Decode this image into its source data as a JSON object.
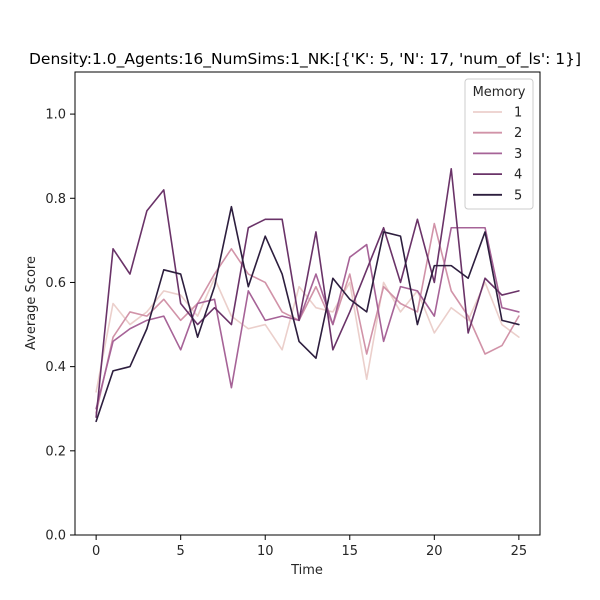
{
  "chart_data": {
    "type": "line",
    "title": "Density:1.0_Agents:16_NumSims:1_NK:[{'K': 5, 'N': 17, 'num_of_ls': 1}]",
    "xlabel": "Time",
    "ylabel": "Average Score",
    "xlim": [
      -1.25,
      26.25
    ],
    "ylim": [
      0.0,
      1.1
    ],
    "xticks": [
      0,
      5,
      10,
      15,
      20,
      25
    ],
    "yticks": [
      0.0,
      0.2,
      0.4,
      0.6,
      0.8,
      1.0
    ],
    "xtick_labels": [
      "0",
      "5",
      "10",
      "15",
      "20",
      "25"
    ],
    "ytick_labels": [
      "0.0",
      "0.2",
      "0.4",
      "0.6",
      "0.8",
      "1.0"
    ],
    "grid": false,
    "legend": {
      "title": "Memory",
      "placement": "top-right"
    },
    "x": [
      0,
      1,
      2,
      3,
      4,
      5,
      6,
      7,
      8,
      9,
      10,
      11,
      12,
      13,
      14,
      15,
      16,
      17,
      18,
      19,
      20,
      21,
      22,
      23,
      24,
      25
    ],
    "series": [
      {
        "name": "1",
        "color": "#ebcfcb",
        "values": [
          0.34,
          0.55,
          0.5,
          0.53,
          0.58,
          0.57,
          0.52,
          0.61,
          0.52,
          0.49,
          0.5,
          0.44,
          0.59,
          0.54,
          0.53,
          0.6,
          0.37,
          0.6,
          0.53,
          0.58,
          0.48,
          0.54,
          0.51,
          0.6,
          0.5,
          0.47
        ]
      },
      {
        "name": "2",
        "color": "#d193a8",
        "values": [
          0.29,
          0.47,
          0.53,
          0.52,
          0.56,
          0.51,
          0.55,
          0.62,
          0.68,
          0.62,
          0.6,
          0.53,
          0.51,
          0.59,
          0.5,
          0.62,
          0.43,
          0.59,
          0.55,
          0.53,
          0.74,
          0.58,
          0.52,
          0.43,
          0.45,
          0.52
        ]
      },
      {
        "name": "3",
        "color": "#a66397",
        "values": [
          0.3,
          0.46,
          0.49,
          0.51,
          0.52,
          0.44,
          0.55,
          0.56,
          0.35,
          0.58,
          0.51,
          0.52,
          0.51,
          0.62,
          0.5,
          0.66,
          0.69,
          0.46,
          0.59,
          0.58,
          0.52,
          0.73,
          0.73,
          0.73,
          0.54,
          0.53
        ]
      },
      {
        "name": "4",
        "color": "#6a3368",
        "values": [
          0.28,
          0.68,
          0.62,
          0.77,
          0.82,
          0.55,
          0.5,
          0.54,
          0.5,
          0.73,
          0.75,
          0.75,
          0.51,
          0.72,
          0.44,
          0.53,
          0.63,
          0.73,
          0.6,
          0.75,
          0.6,
          0.87,
          0.48,
          0.61,
          0.57,
          0.58
        ]
      },
      {
        "name": "5",
        "color": "#2d1e3e",
        "values": [
          0.27,
          0.39,
          0.4,
          0.49,
          0.63,
          0.62,
          0.47,
          0.59,
          0.78,
          0.59,
          0.71,
          0.62,
          0.46,
          0.42,
          0.61,
          0.56,
          0.53,
          0.72,
          0.71,
          0.5,
          0.64,
          0.64,
          0.61,
          0.72,
          0.51,
          0.5
        ]
      }
    ]
  }
}
